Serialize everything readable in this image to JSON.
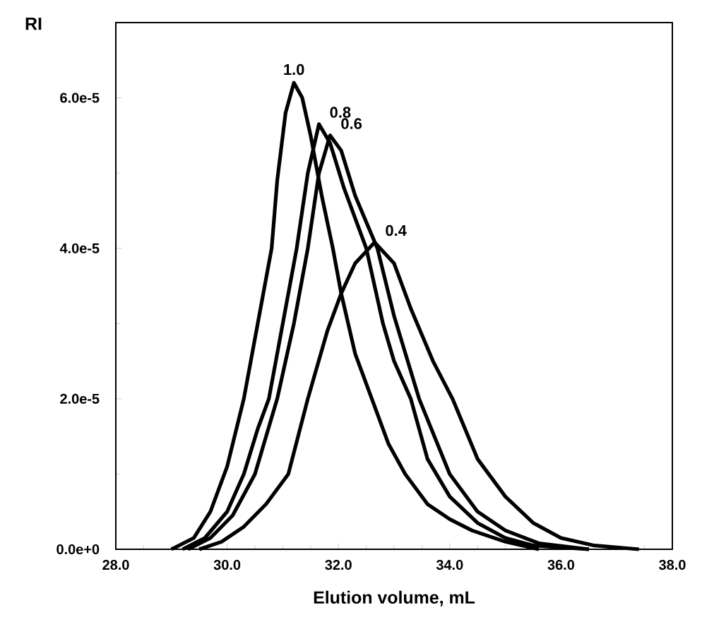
{
  "chart_data": {
    "type": "line",
    "xlabel": "Elution volume, mL",
    "ylabel": "RI",
    "xlim": [
      28,
      38
    ],
    "ylim": [
      0,
      7e-05
    ],
    "xticks": [
      {
        "value": 28,
        "label": "28.0"
      },
      {
        "value": 30,
        "label": "30.0"
      },
      {
        "value": 32,
        "label": "32.0"
      },
      {
        "value": 34,
        "label": "34.0"
      },
      {
        "value": 36,
        "label": "36.0"
      },
      {
        "value": 38,
        "label": "38.0"
      }
    ],
    "yticks": [
      {
        "value": 0,
        "label": "0.0e+0"
      },
      {
        "value": 2e-05,
        "label": "2.0e-5"
      },
      {
        "value": 4e-05,
        "label": "4.0e-5"
      },
      {
        "value": 6e-05,
        "label": "6.0e-5"
      }
    ],
    "legend": false,
    "grid": false,
    "line_style": "solid",
    "series": [
      {
        "name": "1.0",
        "color": "#000000",
        "x": [
          29.0,
          29.4,
          29.7,
          30.0,
          30.3,
          30.6,
          30.8,
          30.9,
          31.05,
          31.2,
          31.35,
          31.5,
          31.7,
          31.9,
          32.05,
          32.3,
          32.6,
          32.9,
          33.2,
          33.6,
          34.0,
          34.4,
          35.0,
          35.6
        ],
        "values": [
          0,
          1.5e-06,
          5e-06,
          1.1e-05,
          2e-05,
          3.2e-05,
          4e-05,
          4.9e-05,
          5.8e-05,
          6.2e-05,
          6e-05,
          5.5e-05,
          4.7e-05,
          4e-05,
          3.4e-05,
          2.6e-05,
          2e-05,
          1.4e-05,
          1e-05,
          6e-06,
          4e-06,
          2.5e-06,
          1e-06,
          0
        ]
      },
      {
        "name": "0.8",
        "color": "#000000",
        "x": [
          29.2,
          29.6,
          30.0,
          30.3,
          30.55,
          30.75,
          31.0,
          31.25,
          31.45,
          31.65,
          31.85,
          32.1,
          32.5,
          32.8,
          33.0,
          33.3,
          33.6,
          34.0,
          34.5,
          35.0,
          35.5,
          36.5
        ],
        "values": [
          0,
          1.5e-06,
          5e-06,
          1e-05,
          1.6e-05,
          2e-05,
          3e-05,
          4e-05,
          5e-05,
          5.65e-05,
          5.4e-05,
          4.8e-05,
          4e-05,
          3e-05,
          2.5e-05,
          2e-05,
          1.2e-05,
          7e-06,
          3.5e-06,
          1.5e-06,
          5e-07,
          0
        ]
      },
      {
        "name": "0.6",
        "color": "#000000",
        "x": [
          29.3,
          29.7,
          30.1,
          30.5,
          30.9,
          31.2,
          31.45,
          31.65,
          31.85,
          32.05,
          32.3,
          32.7,
          33.0,
          33.45,
          34.0,
          34.5,
          35.0,
          35.6,
          36.5
        ],
        "values": [
          0,
          1.5e-06,
          4.5e-06,
          1e-05,
          2e-05,
          3e-05,
          4e-05,
          5e-05,
          5.5e-05,
          5.3e-05,
          4.7e-05,
          4e-05,
          3.1e-05,
          2e-05,
          1e-05,
          5e-06,
          2.5e-06,
          8e-07,
          0
        ]
      },
      {
        "name": "0.4",
        "color": "#000000",
        "x": [
          29.5,
          29.9,
          30.3,
          30.7,
          31.1,
          31.45,
          31.8,
          32.05,
          32.3,
          32.65,
          33.0,
          33.3,
          33.7,
          34.05,
          34.5,
          35.0,
          35.5,
          36.0,
          36.6,
          37.4
        ],
        "values": [
          0,
          1e-06,
          3e-06,
          6e-06,
          1e-05,
          2e-05,
          2.9e-05,
          3.4e-05,
          3.8e-05,
          4.08e-05,
          3.8e-05,
          3.2e-05,
          2.5e-05,
          2e-05,
          1.2e-05,
          7e-06,
          3.5e-06,
          1.5e-06,
          5e-07,
          0
        ]
      }
    ]
  }
}
